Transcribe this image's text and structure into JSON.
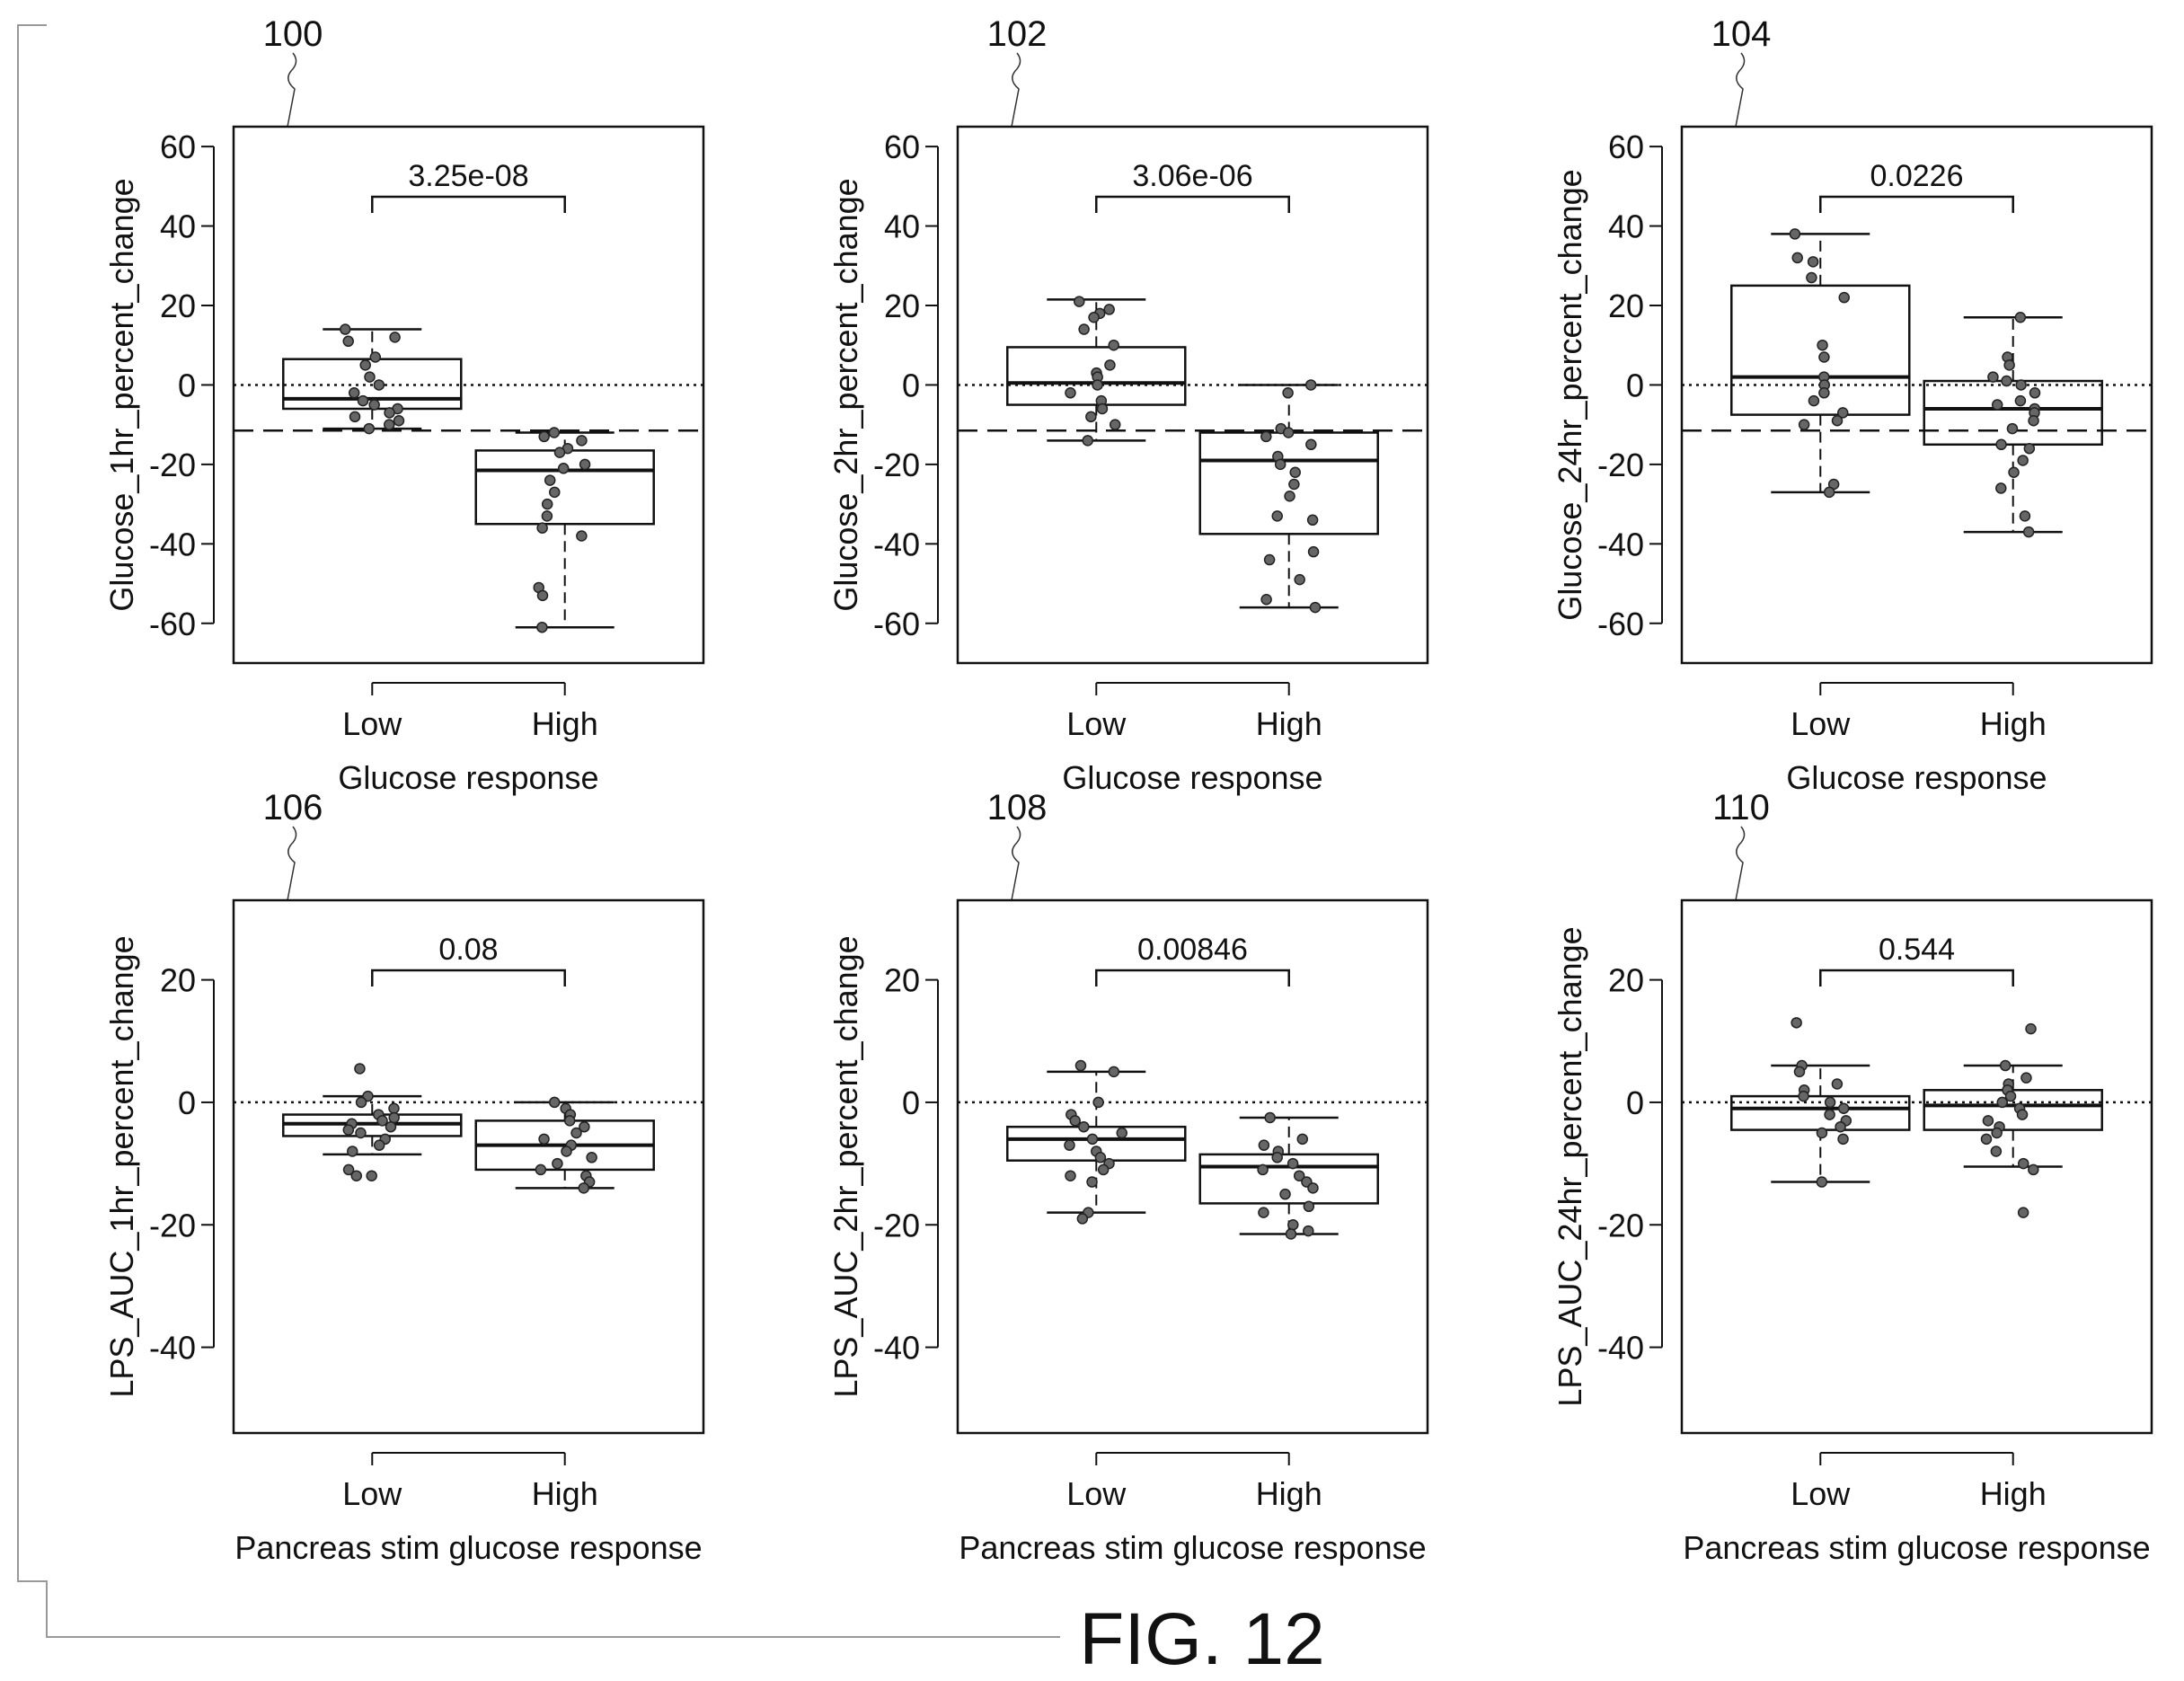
{
  "figure": {
    "label": "FIG. 12"
  },
  "chart_data": [
    {
      "ref": "100",
      "type": "box",
      "ylabel": "Glucose_1hr_percent_change",
      "xlabel": "Glucose response",
      "categories": [
        "Low",
        "High"
      ],
      "ylim": [
        -70,
        65
      ],
      "yticks": [
        60,
        40,
        20,
        0,
        -20,
        -40,
        -60
      ],
      "pvalue": "3.25e-08",
      "dashed_ref": -11.5,
      "boxes": [
        {
          "min": -11,
          "q1": -6,
          "median": -3.5,
          "q3": 6.5,
          "max": 14
        },
        {
          "min": -61,
          "q1": -35,
          "median": -21.5,
          "q3": -16.5,
          "max": -12
        }
      ],
      "points": [
        [
          14,
          12,
          11,
          7,
          5,
          2,
          0,
          -2,
          -4,
          -5,
          -6,
          -7,
          -8,
          -9,
          -10,
          -11
        ],
        [
          -12,
          -13,
          -14,
          -16,
          -17,
          -20,
          -21,
          -24,
          -27,
          -30,
          -33,
          -36,
          -38,
          -51,
          -53,
          -61
        ]
      ]
    },
    {
      "ref": "102",
      "type": "box",
      "ylabel": "Glucose_2hr_percent_change",
      "xlabel": "Glucose response",
      "categories": [
        "Low",
        "High"
      ],
      "ylim": [
        -70,
        65
      ],
      "yticks": [
        60,
        40,
        20,
        0,
        -20,
        -40,
        -60
      ],
      "pvalue": "3.06e-06",
      "dashed_ref": -11.5,
      "boxes": [
        {
          "min": -14,
          "q1": -5,
          "median": 0.5,
          "q3": 9.5,
          "max": 21.5
        },
        {
          "min": -56,
          "q1": -37.5,
          "median": -19,
          "q3": -12,
          "max": 0
        }
      ],
      "points": [
        [
          21,
          19,
          18,
          17,
          14,
          10,
          5,
          3,
          2,
          0,
          -2,
          -4,
          -6,
          -8,
          -10,
          -14
        ],
        [
          0,
          -2,
          -11,
          -12,
          -13,
          -15,
          -18,
          -20,
          -22,
          -25,
          -28,
          -33,
          -34,
          -42,
          -44,
          -49,
          -54,
          -56
        ]
      ]
    },
    {
      "ref": "104",
      "type": "box",
      "ylabel": "Glucose_24hr_percent_change",
      "xlabel": "Glucose response",
      "categories": [
        "Low",
        "High"
      ],
      "ylim": [
        -70,
        65
      ],
      "yticks": [
        60,
        40,
        20,
        0,
        -20,
        -40,
        -60
      ],
      "pvalue": "0.0226",
      "dashed_ref": -11.5,
      "boxes": [
        {
          "min": -27,
          "q1": -7.5,
          "median": 2,
          "q3": 25,
          "max": 38
        },
        {
          "min": -37,
          "q1": -15,
          "median": -6,
          "q3": 1,
          "max": 17
        }
      ],
      "points": [
        [
          38,
          32,
          31,
          27,
          22,
          10,
          7,
          2,
          0,
          -2,
          -4,
          -7,
          -9,
          -10,
          -25,
          -27
        ],
        [
          17,
          7,
          5,
          2,
          1,
          0,
          -2,
          -4,
          -5,
          -6,
          -7,
          -9,
          -11,
          -15,
          -16,
          -19,
          -22,
          -26,
          -33,
          -37
        ]
      ]
    },
    {
      "ref": "106",
      "type": "box",
      "ylabel": "LPS_AUC_1hr_percent_change",
      "xlabel": "Pancreas stim glucose response",
      "categories": [
        "Low",
        "High"
      ],
      "ylim": [
        -54,
        33
      ],
      "yticks": [
        20,
        0,
        -20,
        -40
      ],
      "pvalue": "0.08",
      "dashed_ref": null,
      "boxes": [
        {
          "min": -8.5,
          "q1": -5.5,
          "median": -3.5,
          "q3": -2,
          "max": 1
        },
        {
          "min": -14,
          "q1": -11,
          "median": -7,
          "q3": -3,
          "max": 0
        }
      ],
      "points": [
        [
          5.5,
          1,
          0,
          -1,
          -2,
          -2.5,
          -3,
          -3.5,
          -4,
          -4.5,
          -5,
          -6,
          -7,
          -8,
          -11,
          -12,
          -12
        ],
        [
          0,
          -1,
          -2,
          -3,
          -4,
          -5,
          -6,
          -7,
          -8,
          -9,
          -10,
          -11,
          -12,
          -13,
          -14
        ]
      ]
    },
    {
      "ref": "108",
      "type": "box",
      "ylabel": "LPS_AUC_2hr_percent_change",
      "xlabel": "Pancreas stim glucose response",
      "categories": [
        "Low",
        "High"
      ],
      "ylim": [
        -54,
        33
      ],
      "yticks": [
        20,
        0,
        -20,
        -40
      ],
      "pvalue": "0.00846",
      "dashed_ref": null,
      "boxes": [
        {
          "min": -18,
          "q1": -9.5,
          "median": -6,
          "q3": -4,
          "max": 5
        },
        {
          "min": -21.5,
          "q1": -16.5,
          "median": -10.5,
          "q3": -8.5,
          "max": -2.5
        }
      ],
      "points": [
        [
          6,
          5,
          0,
          -2,
          -3,
          -4,
          -5,
          -6,
          -7,
          -8,
          -9,
          -10,
          -11,
          -12,
          -13,
          -18,
          -19
        ],
        [
          -2.5,
          -6,
          -7,
          -8,
          -9,
          -10,
          -11,
          -12,
          -13,
          -14,
          -15,
          -17,
          -18,
          -20,
          -21,
          -21.5
        ]
      ]
    },
    {
      "ref": "110",
      "type": "box",
      "ylabel": "LPS_AUC_24hr_percent_change",
      "xlabel": "Pancreas stim glucose response",
      "categories": [
        "Low",
        "High"
      ],
      "ylim": [
        -54,
        33
      ],
      "yticks": [
        20,
        0,
        -20,
        -40
      ],
      "pvalue": "0.544",
      "dashed_ref": null,
      "boxes": [
        {
          "min": -13,
          "q1": -4.5,
          "median": -1,
          "q3": 1,
          "max": 6
        },
        {
          "min": -10.5,
          "q1": -4.5,
          "median": -0.5,
          "q3": 2,
          "max": 6
        }
      ],
      "points": [
        [
          13,
          6,
          5,
          3,
          2,
          1,
          0,
          -1,
          -2,
          -3,
          -4,
          -5,
          -6,
          -13
        ],
        [
          12,
          6,
          4,
          3,
          2,
          1,
          0,
          -1,
          -2,
          -3,
          -4,
          -5,
          -6,
          -8,
          -10,
          -11,
          -18
        ]
      ]
    }
  ]
}
